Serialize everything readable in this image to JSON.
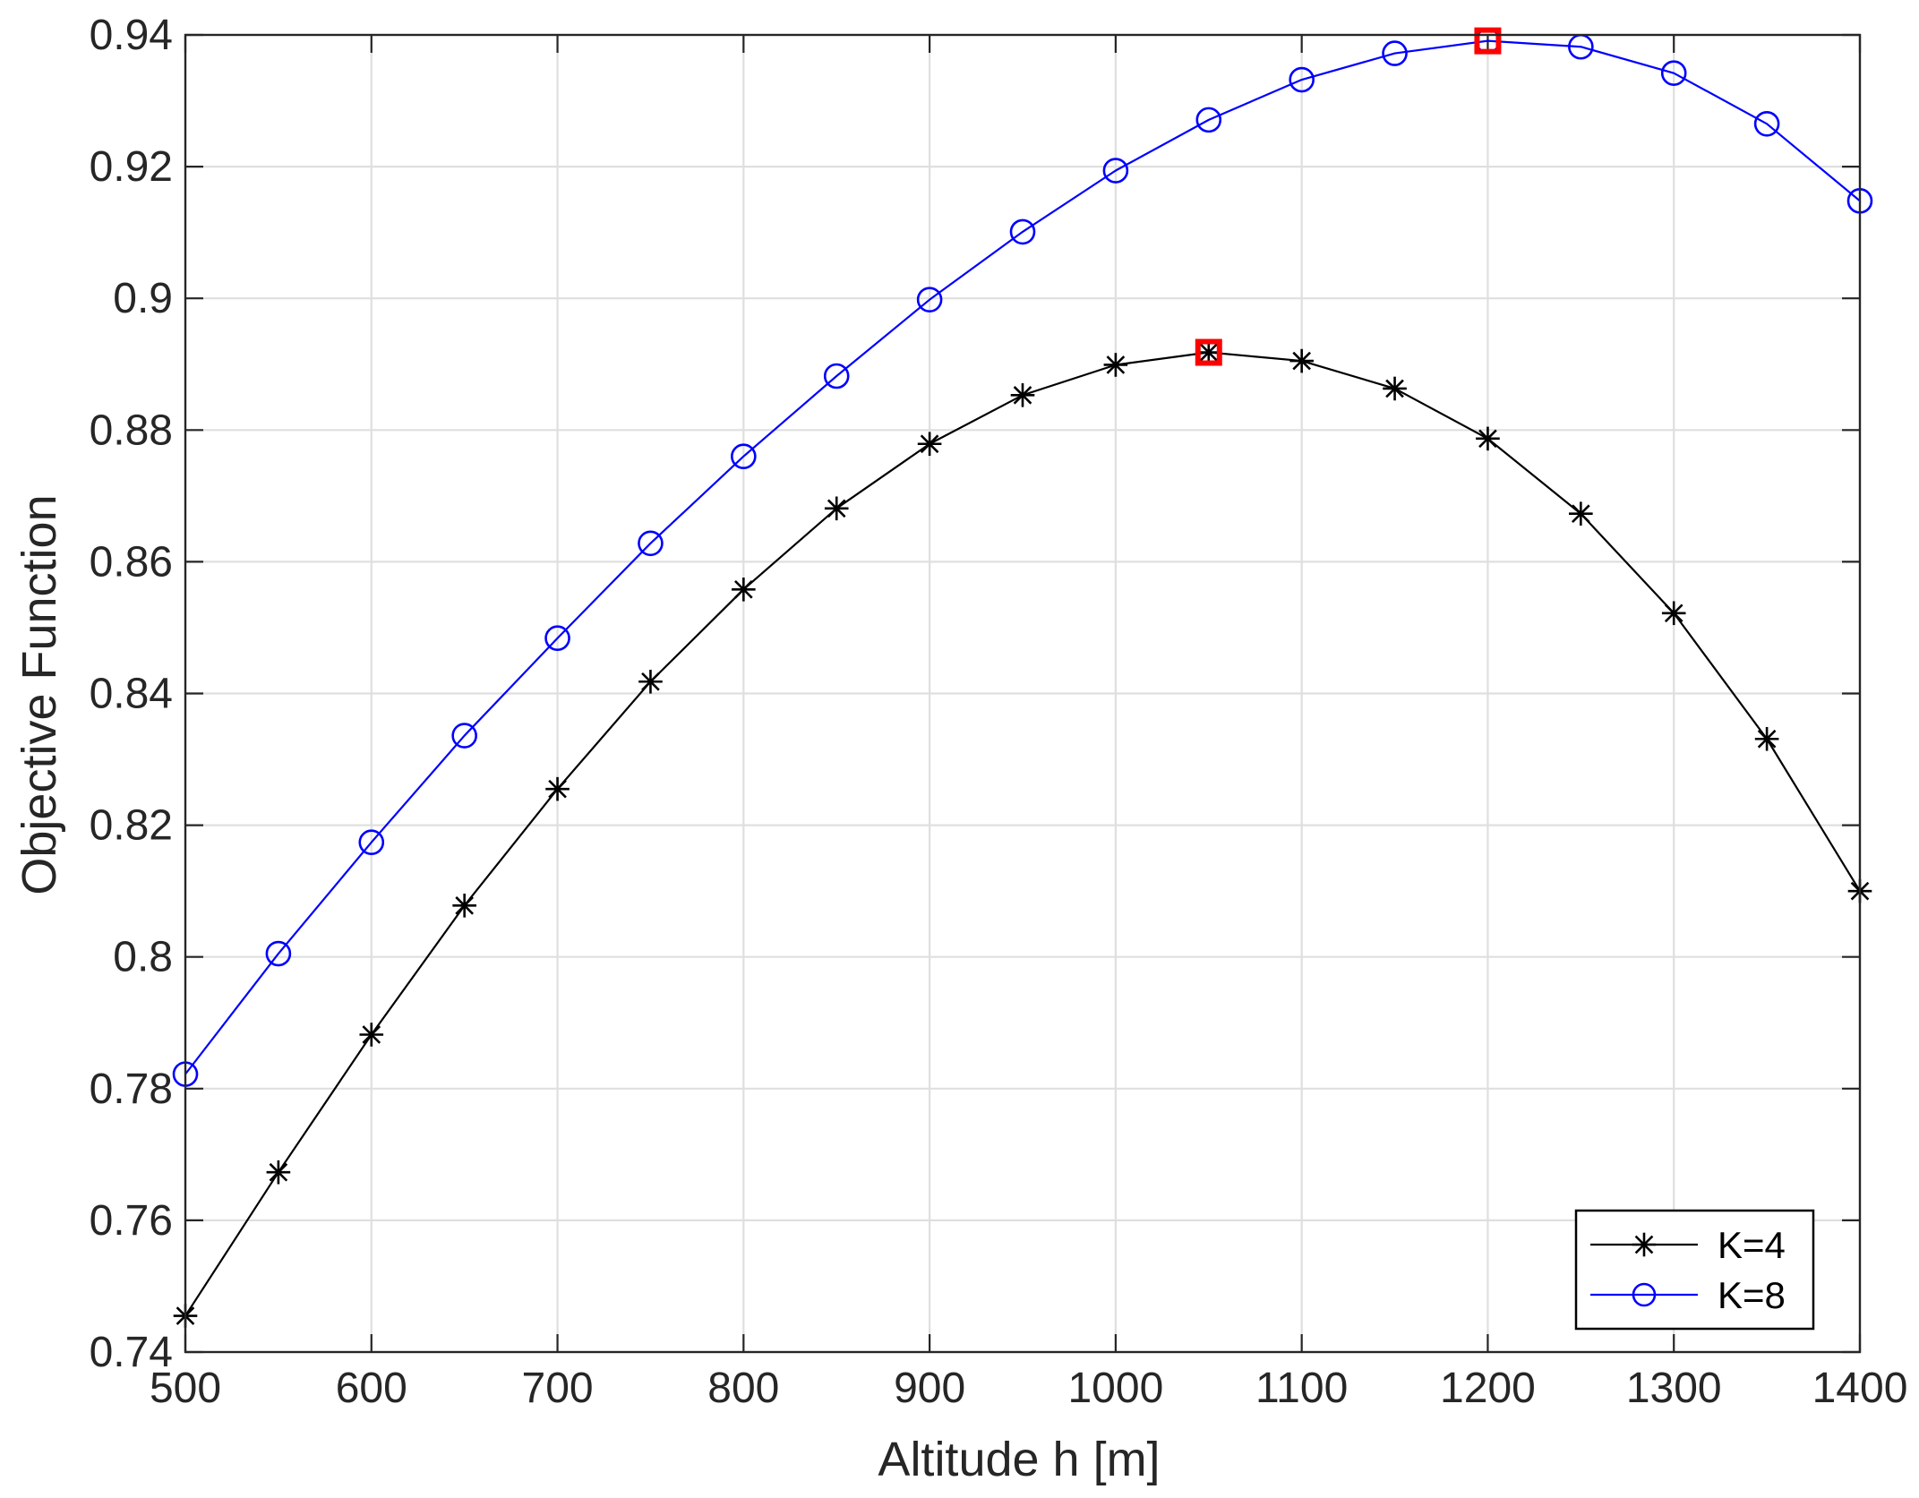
{
  "chart_data": {
    "type": "line",
    "title": "",
    "xlabel": "Altitude h [m]",
    "ylabel": "Objective Function",
    "xlim": [
      500,
      1400
    ],
    "ylim": [
      0.74,
      0.94
    ],
    "xticks": [
      500,
      600,
      700,
      800,
      900,
      1000,
      1100,
      1200,
      1300,
      1400
    ],
    "yticks": [
      0.74,
      0.76,
      0.78,
      0.8,
      0.82,
      0.84,
      0.86,
      0.88,
      0.9,
      0.92,
      0.94
    ],
    "x_tick_labels": [
      "500",
      "600",
      "700",
      "800",
      "900",
      "1000",
      "1100",
      "1200",
      "1300",
      "1400"
    ],
    "y_tick_labels": [
      "0.74",
      "0.76",
      "0.78",
      "0.8",
      "0.82",
      "0.84",
      "0.86",
      "0.88",
      "0.9",
      "0.92",
      "0.94"
    ],
    "grid": true,
    "legend_position": "bottom-right",
    "x": [
      500,
      550,
      600,
      650,
      700,
      750,
      800,
      850,
      900,
      950,
      1000,
      1050,
      1100,
      1150,
      1200,
      1250,
      1300,
      1350,
      1400
    ],
    "series": [
      {
        "name": "K=4",
        "color": "#000000",
        "marker": "asterisk",
        "values": [
          0.7455,
          0.7673,
          0.7882,
          0.8078,
          0.8255,
          0.8418,
          0.8558,
          0.8681,
          0.8779,
          0.8853,
          0.8899,
          0.8918,
          0.8905,
          0.8863,
          0.8787,
          0.8673,
          0.8522,
          0.8331,
          0.81
        ]
      },
      {
        "name": "K=8",
        "color": "#0000ff",
        "marker": "circle",
        "values": [
          0.7822,
          0.8005,
          0.8174,
          0.8336,
          0.8484,
          0.8628,
          0.876,
          0.8882,
          0.8998,
          0.9101,
          0.9194,
          0.9271,
          0.9332,
          0.9372,
          0.9391,
          0.9382,
          0.9342,
          0.9265,
          0.9148
        ]
      }
    ],
    "highlighted_points": [
      {
        "series": "K=4",
        "x": 1050,
        "y": 0.8918,
        "color": "#ff0000",
        "marker": "square"
      },
      {
        "series": "K=8",
        "x": 1200,
        "y": 0.9391,
        "color": "#ff0000",
        "marker": "square"
      }
    ]
  }
}
